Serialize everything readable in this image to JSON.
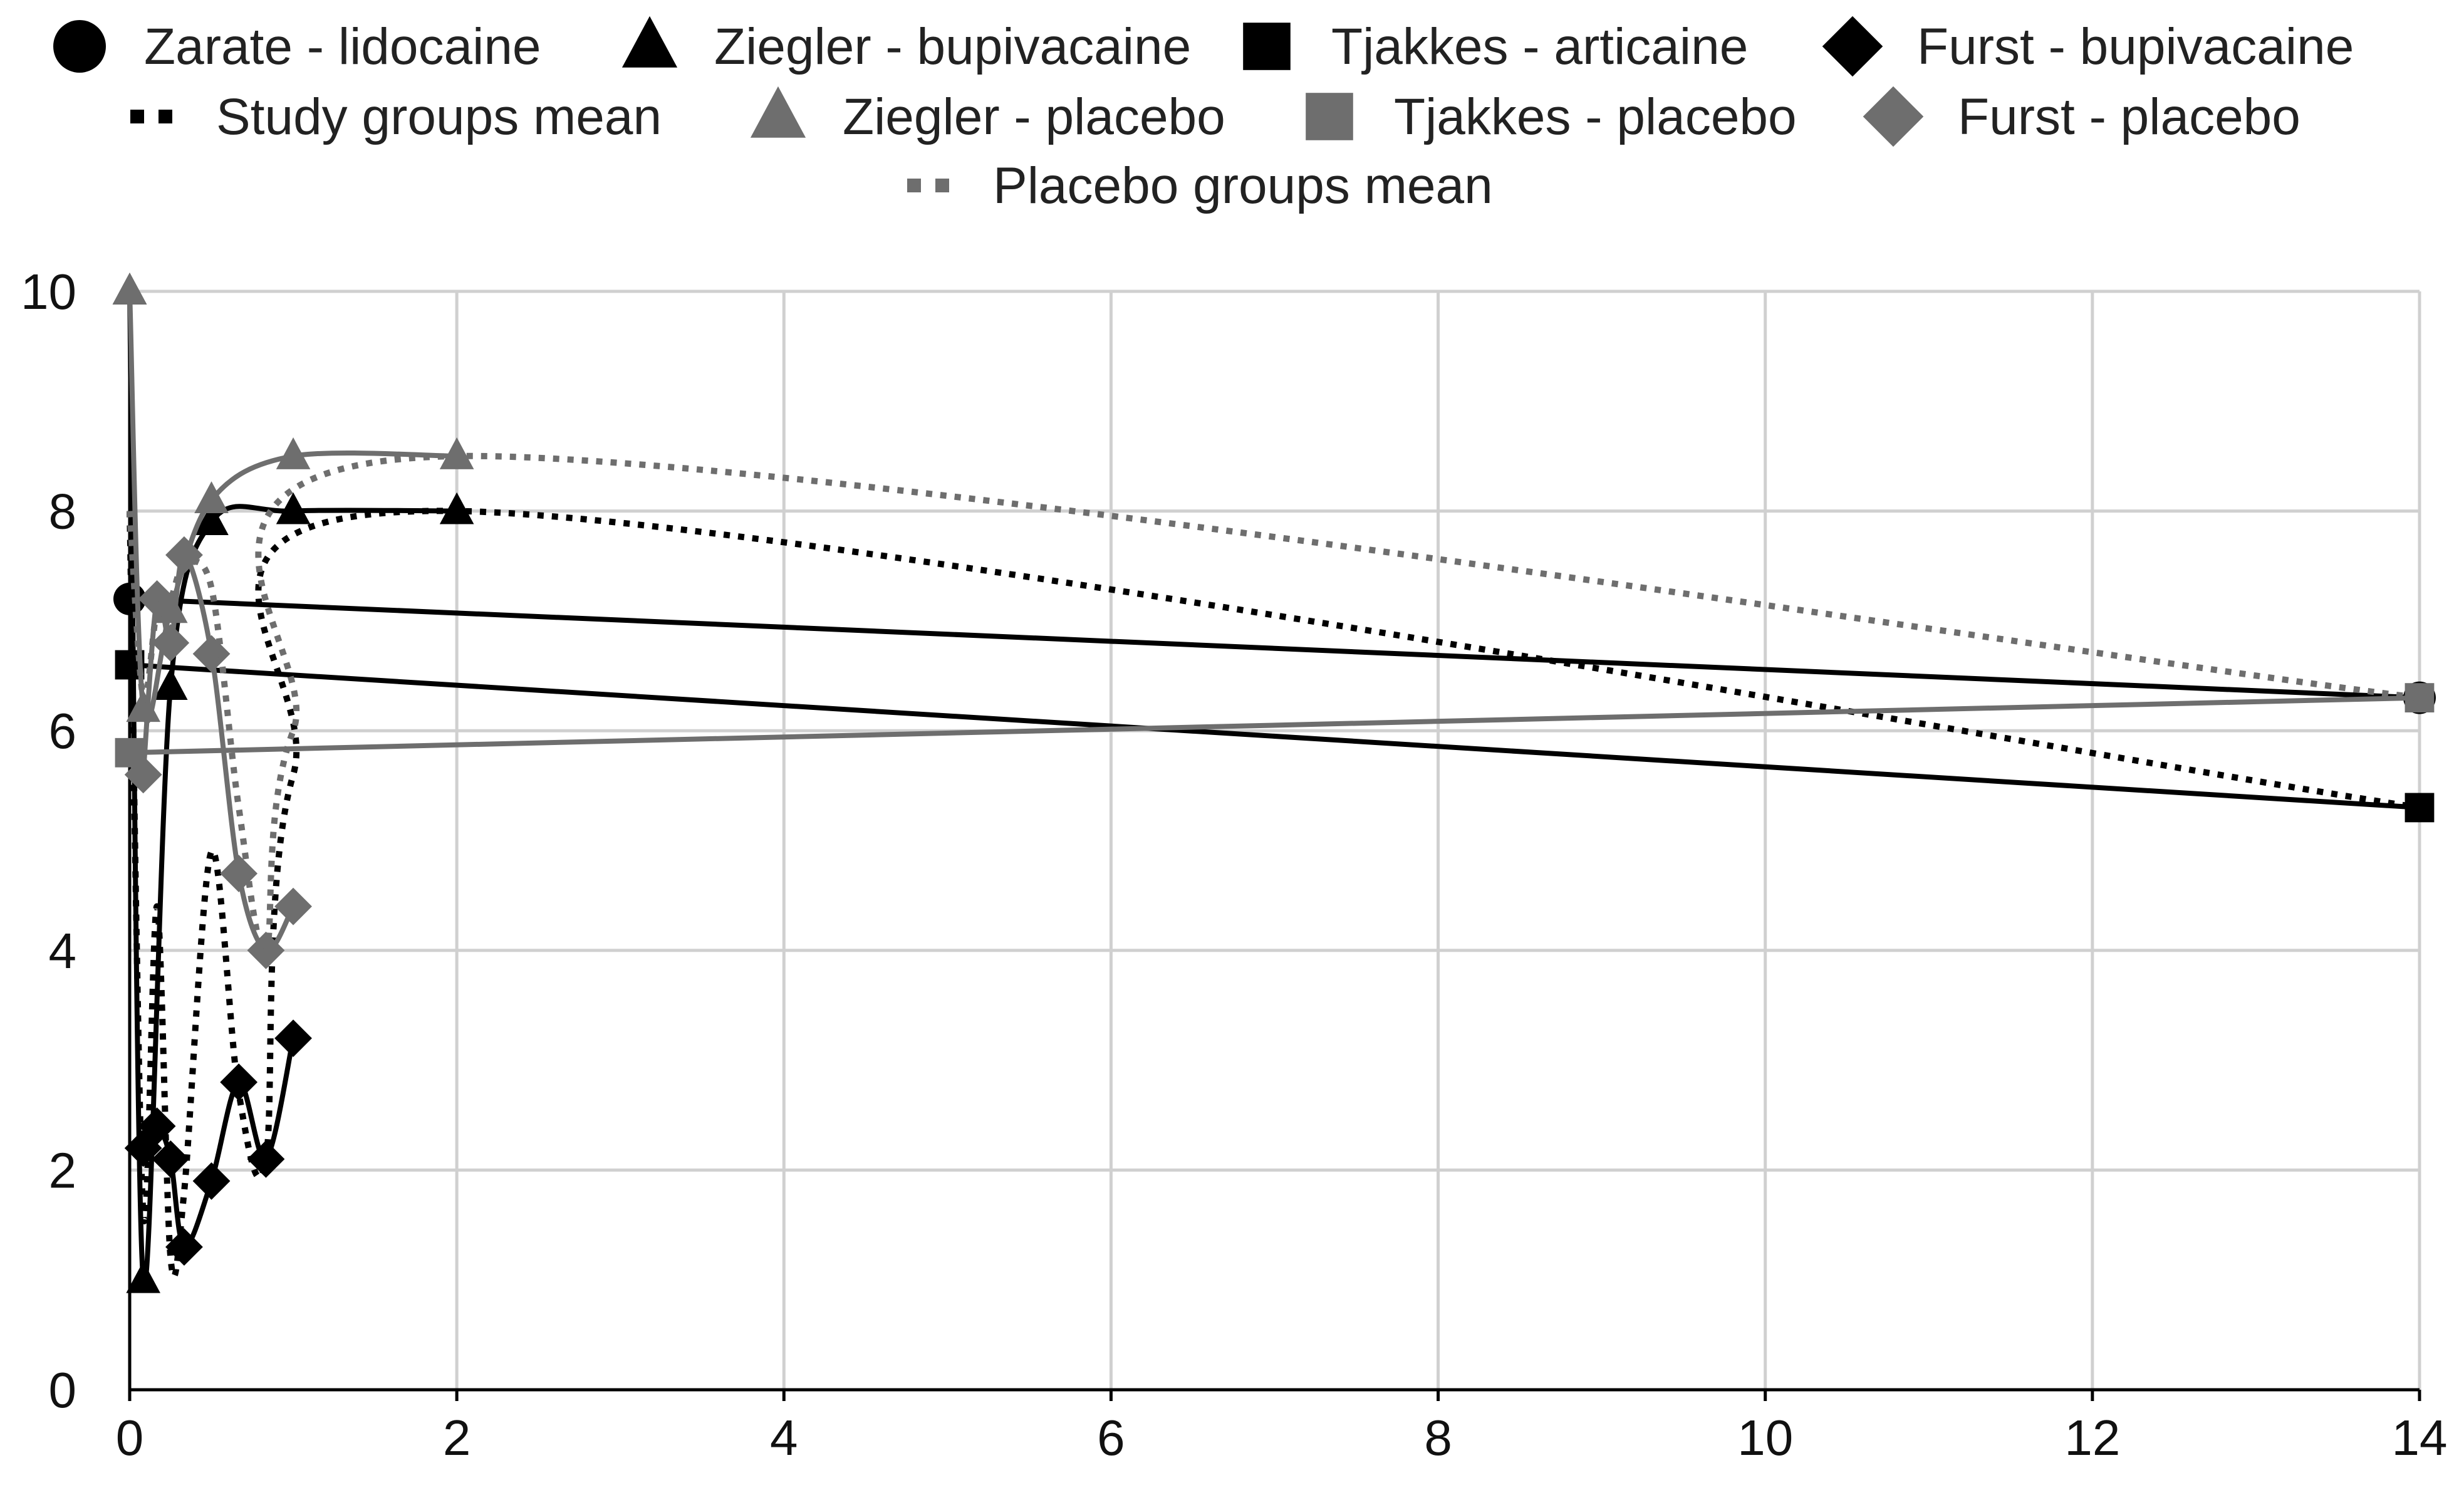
{
  "chart_data": {
    "type": "line",
    "title": "",
    "xlabel": "",
    "ylabel": "",
    "xlim": [
      0,
      14
    ],
    "ylim": [
      0,
      10
    ],
    "x_ticks": [
      "0",
      "2",
      "4",
      "6",
      "8",
      "10",
      "12",
      "14"
    ],
    "y_ticks": [
      "0",
      "2",
      "4",
      "6",
      "8",
      "10"
    ],
    "grid": true,
    "legend_position": "top",
    "series": [
      {
        "name": "Zarate - lidocaine",
        "color": "#000000",
        "marker": "circle",
        "line": "solid",
        "points": [
          [
            0,
            7.2
          ],
          [
            14,
            6.3
          ]
        ]
      },
      {
        "name": "Ziegler - bupivacaine",
        "color": "#000000",
        "marker": "triangle",
        "line": "solid",
        "points": [
          [
            0,
            10
          ],
          [
            0.083,
            1
          ],
          [
            0.25,
            6.4
          ],
          [
            0.5,
            7.9
          ],
          [
            1,
            8
          ],
          [
            2,
            8
          ]
        ]
      },
      {
        "name": "Tjakkes - articaine",
        "color": "#000000",
        "marker": "square",
        "line": "solid",
        "points": [
          [
            0,
            6.6
          ],
          [
            14,
            5.3
          ]
        ]
      },
      {
        "name": "Furst - bupivacaine",
        "color": "#000000",
        "marker": "diamond",
        "line": "solid",
        "points": [
          [
            0.083,
            2.2
          ],
          [
            0.167,
            2.4
          ],
          [
            0.25,
            2.1
          ],
          [
            0.333,
            1.3
          ],
          [
            0.5,
            1.9
          ],
          [
            0.667,
            2.8
          ],
          [
            0.833,
            2.1
          ],
          [
            1,
            3.2
          ]
        ]
      },
      {
        "name": "Study groups mean",
        "color": "#000000",
        "marker": "none",
        "line": "dotted",
        "points": [
          [
            0,
            8
          ],
          [
            0.083,
            1.6
          ],
          [
            0.167,
            4.4
          ],
          [
            0.25,
            1.2
          ],
          [
            0.333,
            1.8
          ],
          [
            0.5,
            4.9
          ],
          [
            0.667,
            2.7
          ],
          [
            0.833,
            2.1
          ],
          [
            1,
            5.6
          ],
          [
            2,
            8
          ],
          [
            14,
            5.3
          ]
        ]
      },
      {
        "name": "Ziegler - placebo",
        "color": "#6e6e6e",
        "marker": "triangle",
        "line": "solid",
        "points": [
          [
            0,
            10
          ],
          [
            0.083,
            6.2
          ],
          [
            0.25,
            7.1
          ],
          [
            0.5,
            8.1
          ],
          [
            1,
            8.5
          ],
          [
            2,
            8.5
          ]
        ]
      },
      {
        "name": "Tjakkes - placebo",
        "color": "#6e6e6e",
        "marker": "square",
        "line": "solid",
        "points": [
          [
            0,
            5.8
          ],
          [
            14,
            6.3
          ]
        ]
      },
      {
        "name": "Furst - placebo",
        "color": "#6e6e6e",
        "marker": "diamond",
        "line": "solid",
        "points": [
          [
            0.083,
            5.6
          ],
          [
            0.167,
            7.2
          ],
          [
            0.25,
            6.8
          ],
          [
            0.333,
            7.6
          ],
          [
            0.5,
            6.7
          ],
          [
            0.667,
            4.7
          ],
          [
            0.833,
            4
          ],
          [
            1,
            4.4
          ]
        ]
      },
      {
        "name": "Placebo groups mean",
        "color": "#6e6e6e",
        "marker": "none",
        "line": "dotted",
        "points": [
          [
            0,
            8
          ],
          [
            0.083,
            6.3
          ],
          [
            0.167,
            7.1
          ],
          [
            0.25,
            7.2
          ],
          [
            0.333,
            7.5
          ],
          [
            0.5,
            7.3
          ],
          [
            0.667,
            5.3
          ],
          [
            0.833,
            4
          ],
          [
            1,
            6
          ],
          [
            2,
            8.5
          ],
          [
            14,
            6.3
          ]
        ]
      }
    ]
  }
}
